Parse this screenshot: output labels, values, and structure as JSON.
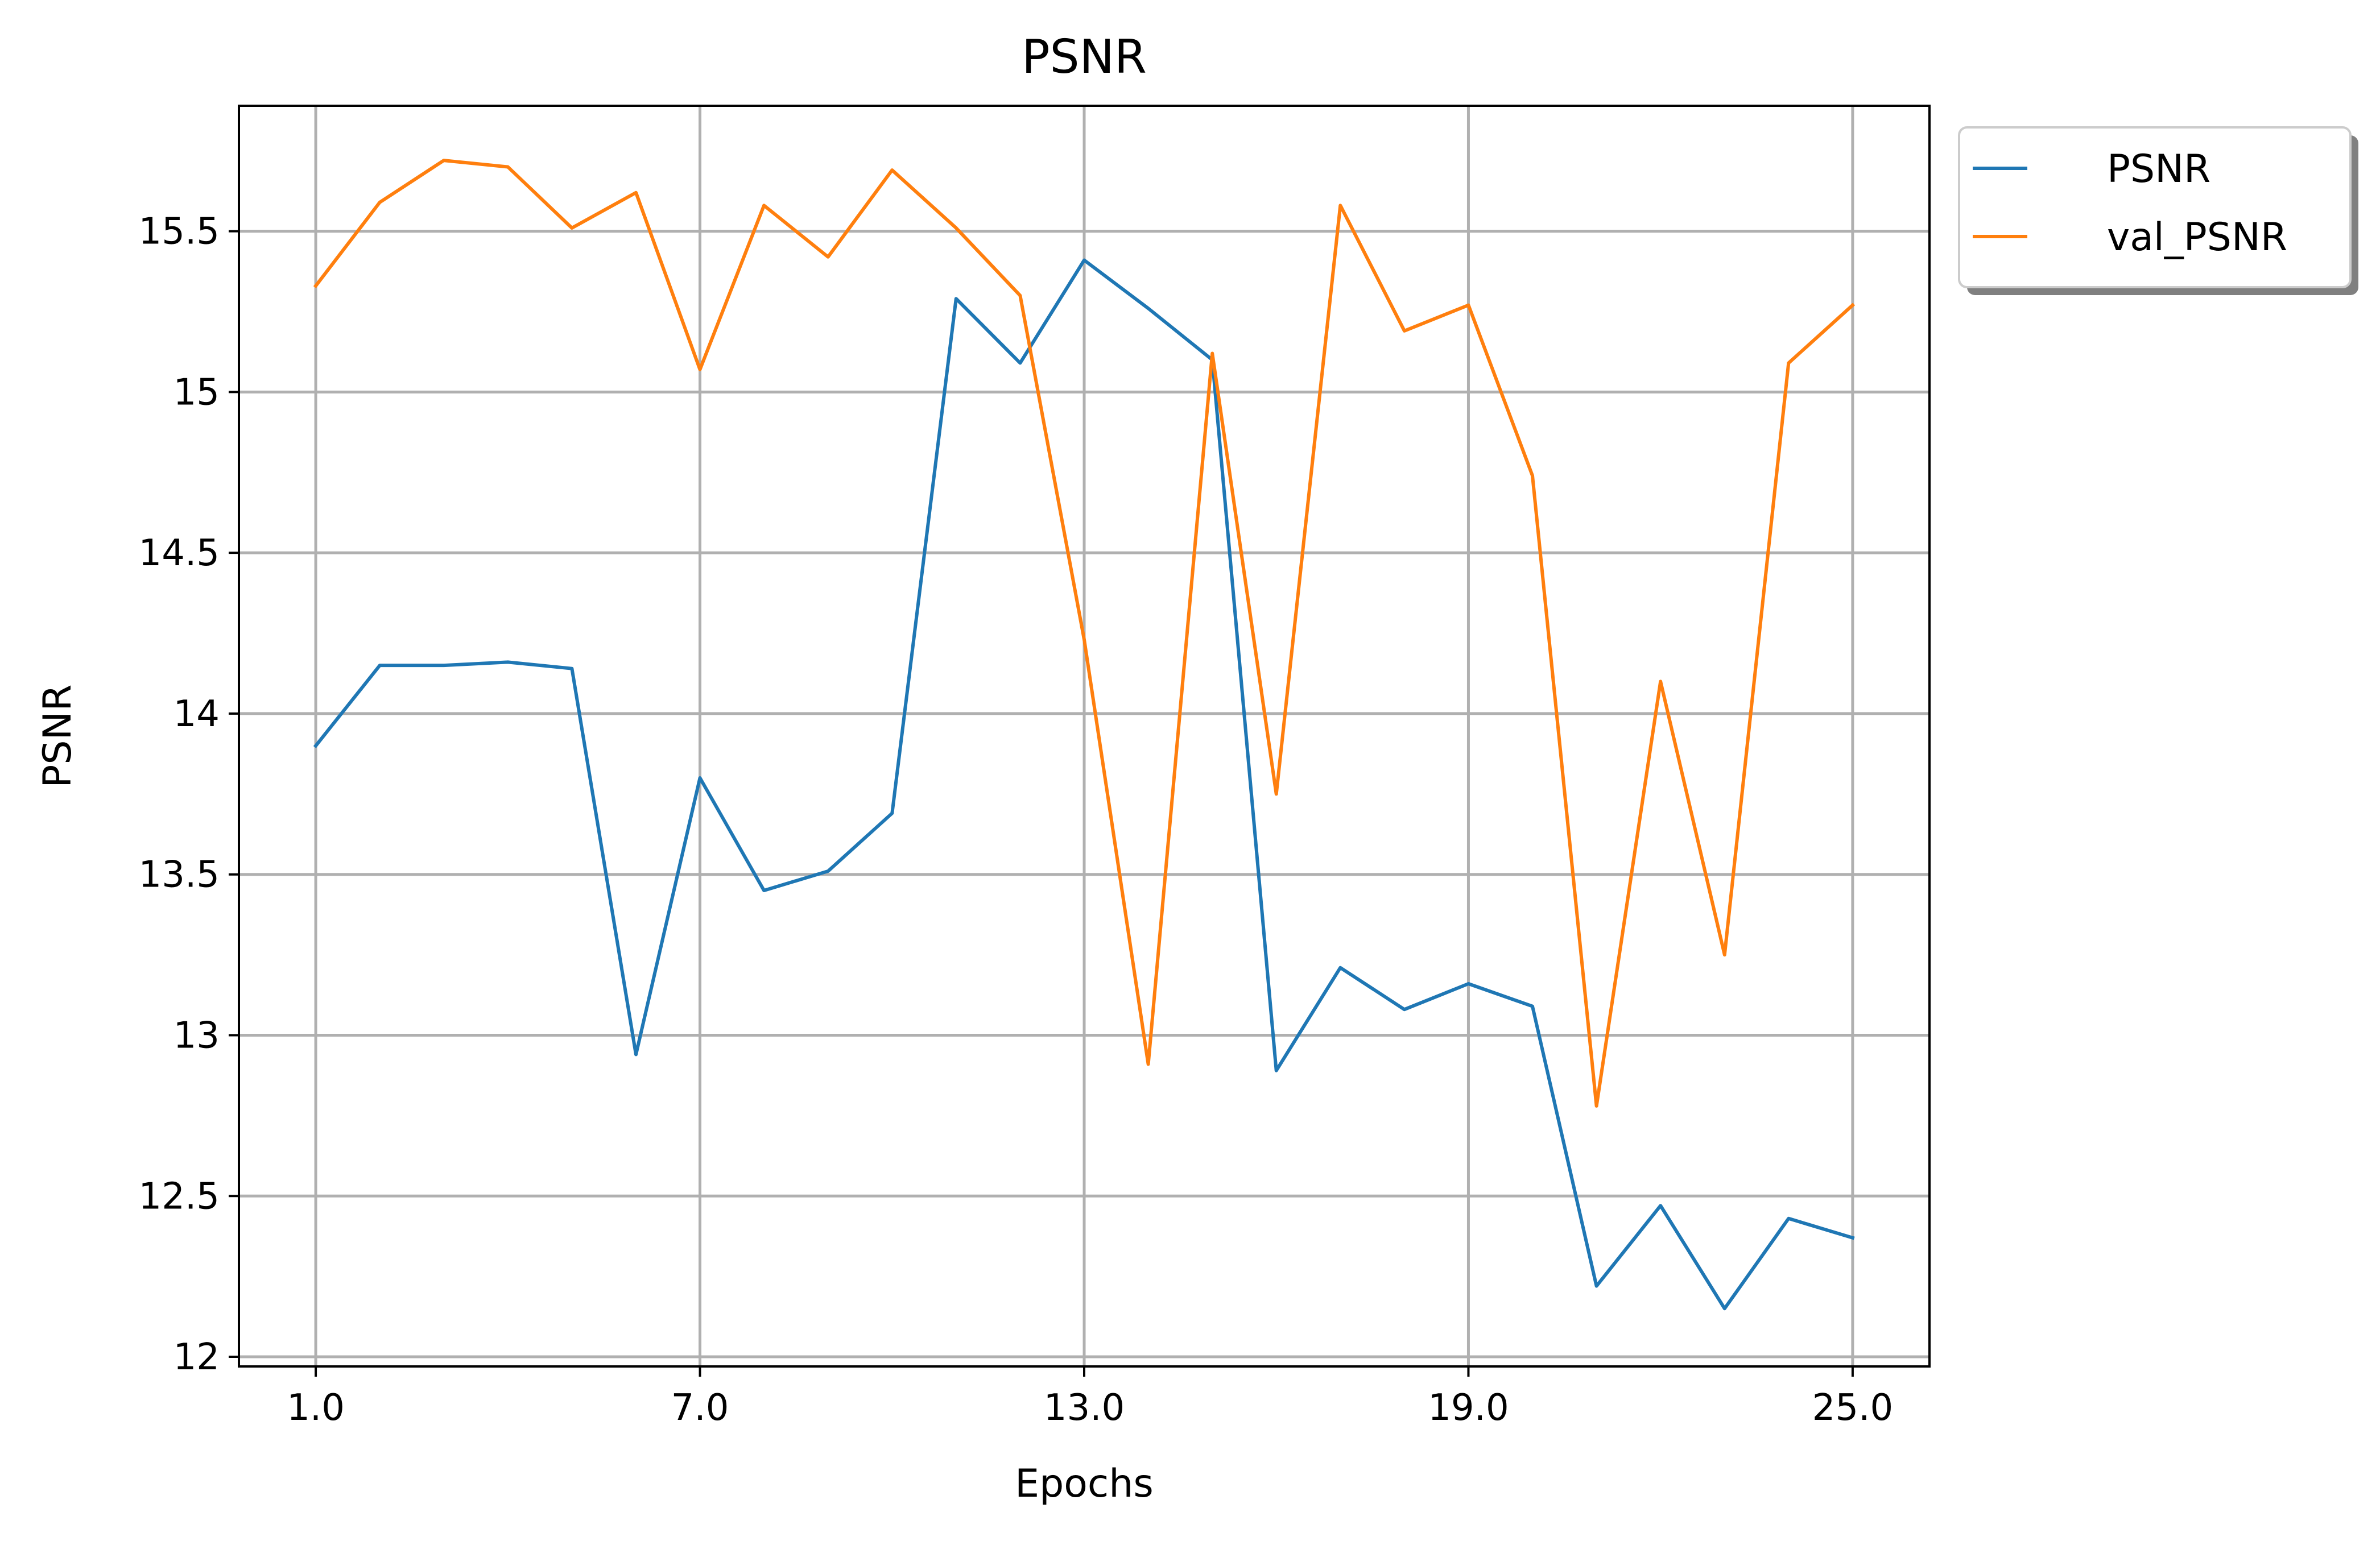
{
  "chart_data": {
    "type": "line",
    "title": "PSNR",
    "xlabel": "Epochs",
    "ylabel": "PSNR",
    "xlim": [
      -0.2,
      26.2
    ],
    "ylim": [
      11.97,
      15.89
    ],
    "x_ticks": [
      1,
      7,
      13,
      19,
      25
    ],
    "x_tick_labels": [
      "1.0",
      "7.0",
      "13.0",
      "19.0",
      "25.0"
    ],
    "y_ticks": [
      12,
      12.5,
      13,
      13.5,
      14,
      14.5,
      15,
      15.5
    ],
    "y_tick_labels": [
      "12",
      "12.5",
      "13",
      "13.5",
      "14",
      "14.5",
      "15",
      "15.5"
    ],
    "grid": true,
    "legend_position": "outside-top-right",
    "x": [
      1,
      2,
      3,
      4,
      5,
      6,
      7,
      8,
      9,
      10,
      11,
      12,
      13,
      14,
      15,
      16,
      17,
      18,
      19,
      20,
      21,
      22,
      23,
      24,
      25
    ],
    "series": [
      {
        "name": "PSNR",
        "color": "#1f77b4",
        "values": [
          13.9,
          14.15,
          14.15,
          14.16,
          14.14,
          12.94,
          13.8,
          13.45,
          13.51,
          13.69,
          15.29,
          15.09,
          15.41,
          15.26,
          15.1,
          12.89,
          13.21,
          13.08,
          13.16,
          13.09,
          12.22,
          12.47,
          12.15,
          12.43,
          12.37
        ]
      },
      {
        "name": "val_PSNR",
        "color": "#ff7f0e",
        "values": [
          15.33,
          15.59,
          15.72,
          15.7,
          15.51,
          15.62,
          15.07,
          15.58,
          15.42,
          15.69,
          15.51,
          15.3,
          14.23,
          12.91,
          15.12,
          13.75,
          15.58,
          15.19,
          15.27,
          14.74,
          12.78,
          14.1,
          13.25,
          15.09,
          15.27
        ]
      }
    ]
  }
}
